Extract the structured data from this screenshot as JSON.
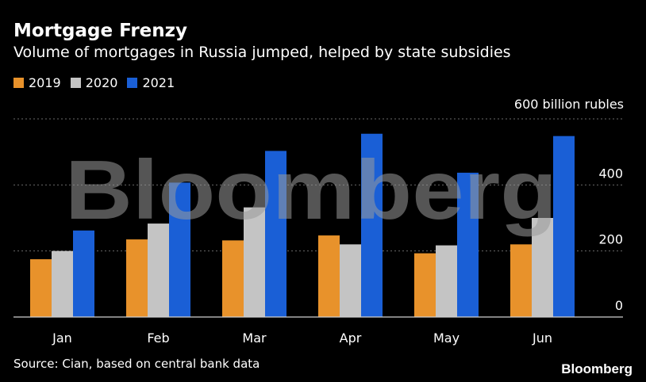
{
  "header": {
    "title": "Mortgage Frenzy",
    "subtitle": "Volume of mortgages in Russia jumped, helped by state subsidies"
  },
  "legend": [
    {
      "label": "2019",
      "color": "#e8922b"
    },
    {
      "label": "2020",
      "color": "#c4c4c4"
    },
    {
      "label": "2021",
      "color": "#1a5fd6"
    }
  ],
  "axis": {
    "unit_label": "600 billion rubles",
    "y_ticks": [
      "0",
      "200",
      "400"
    ]
  },
  "chart_data": {
    "type": "bar",
    "categories": [
      "Jan",
      "Feb",
      "Mar",
      "Apr",
      "May",
      "Jun"
    ],
    "series": [
      {
        "name": "2019",
        "color": "#e8922b",
        "values": [
          175,
          235,
          232,
          247,
          193,
          220
        ]
      },
      {
        "name": "2020",
        "color": "#c4c4c4",
        "values": [
          200,
          283,
          332,
          220,
          217,
          300
        ]
      },
      {
        "name": "2021",
        "color": "#1a5fd6",
        "values": [
          262,
          407,
          503,
          555,
          437,
          548
        ]
      }
    ],
    "ylim": [
      0,
      600
    ],
    "y_ticks": [
      0,
      200,
      400,
      600
    ],
    "grid": true,
    "legend_position": "top-left"
  },
  "watermark": "Bloomberg",
  "footer": {
    "source": "Source: Cian, based on central bank data",
    "brand": "Bloomberg"
  }
}
